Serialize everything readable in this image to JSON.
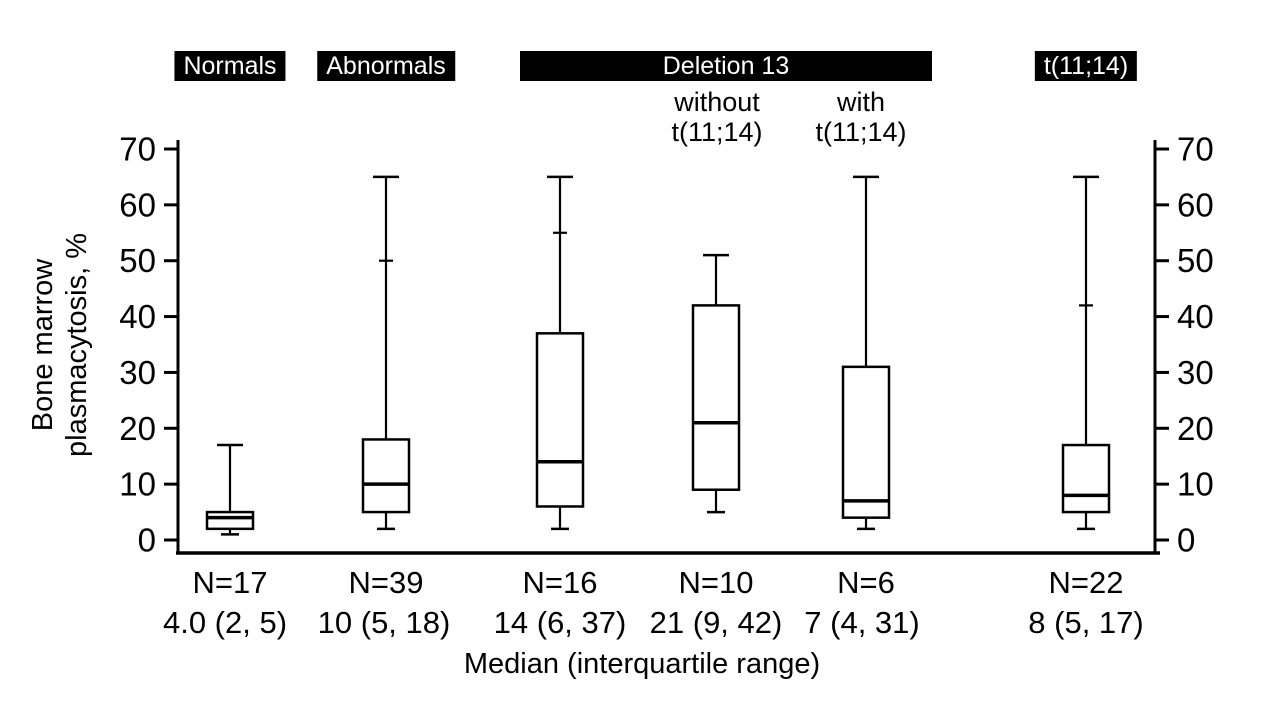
{
  "chart_data": {
    "type": "boxplot",
    "title": "",
    "ylabel_lines": [
      "Bone marrow",
      "plasmacytosis, %"
    ],
    "xlabel": "Median (interquartile range)",
    "ylim": [
      0,
      70
    ],
    "yticks": [
      0,
      10,
      20,
      30,
      40,
      50,
      60,
      70
    ],
    "grid": false,
    "legend": "none",
    "group_headers": [
      {
        "label": "Normals"
      },
      {
        "label": "Abnormals"
      },
      {
        "label": "Deletion 13"
      },
      {
        "label": "t(11;14)"
      }
    ],
    "sub_headers": [
      {
        "lines": [
          "without",
          "t(11;14)"
        ]
      },
      {
        "lines": [
          "with",
          "t(11;14)"
        ]
      }
    ],
    "boxes": [
      {
        "name": "Normals",
        "n": 17,
        "n_label": "N=17",
        "stat_label": "4.0 (2, 5)",
        "median": 4,
        "q1": 2,
        "q3": 5,
        "whisker_low": 1,
        "whisker_high": 17,
        "tick": null
      },
      {
        "name": "Abnormals",
        "n": 39,
        "n_label": "N=39",
        "stat_label": "10 (5, 18)",
        "median": 10,
        "q1": 5,
        "q3": 18,
        "whisker_low": 2,
        "whisker_high": 65,
        "tick": 50
      },
      {
        "name": "Deletion 13 (all)",
        "n": 16,
        "n_label": "N=16",
        "stat_label": "14 (6, 37)",
        "median": 14,
        "q1": 6,
        "q3": 37,
        "whisker_low": 2,
        "whisker_high": 65,
        "tick": 55
      },
      {
        "name": "Deletion 13 without t(11;14)",
        "n": 10,
        "n_label": "N=10",
        "stat_label": "21 (9, 42)",
        "median": 21,
        "q1": 9,
        "q3": 42,
        "whisker_low": 5,
        "whisker_high": 51,
        "tick": null
      },
      {
        "name": "Deletion 13 with t(11;14)",
        "n": 6,
        "n_label": "N=6",
        "stat_label": "7 (4, 31)",
        "median": 7,
        "q1": 4,
        "q3": 31,
        "whisker_low": 2,
        "whisker_high": 65,
        "tick": null
      },
      {
        "name": "t(11;14)",
        "n": 22,
        "n_label": "N=22",
        "stat_label": "8 (5, 17)",
        "median": 8,
        "q1": 5,
        "q3": 17,
        "whisker_low": 2,
        "whisker_high": 65,
        "tick": 42
      }
    ]
  }
}
